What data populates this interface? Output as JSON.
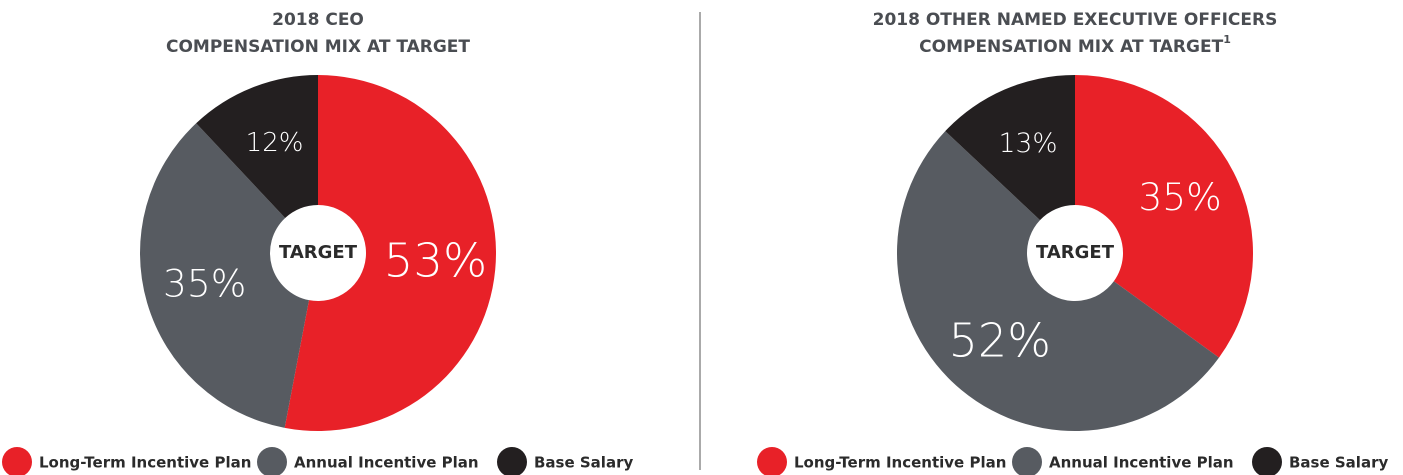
{
  "chart_data": [
    {
      "type": "donut",
      "title": [
        "2018 CEO",
        "COMPENSATION MIX AT TARGET"
      ],
      "center_label": "TARGET",
      "categories": [
        "Long-Term Incentive Plan",
        "Annual Incentive Plan",
        "Base Salary"
      ],
      "values": [
        53,
        35,
        12
      ],
      "value_labels": [
        "53%",
        "35%",
        "12%"
      ],
      "colors": [
        "#e82128",
        "#575b61",
        "#231f20"
      ]
    },
    {
      "type": "donut",
      "title": [
        "2018 OTHER NAMED EXECUTIVE OFFICERS",
        "COMPENSATION MIX AT TARGET"
      ],
      "title_note": "1",
      "center_label": "TARGET",
      "categories": [
        "Long-Term Incentive Plan",
        "Annual Incentive Plan",
        "Base Salary"
      ],
      "values": [
        35,
        52,
        13
      ],
      "value_labels": [
        "35%",
        "52%",
        "13%"
      ],
      "colors": [
        "#e82128",
        "#575b61",
        "#231f20"
      ]
    }
  ]
}
